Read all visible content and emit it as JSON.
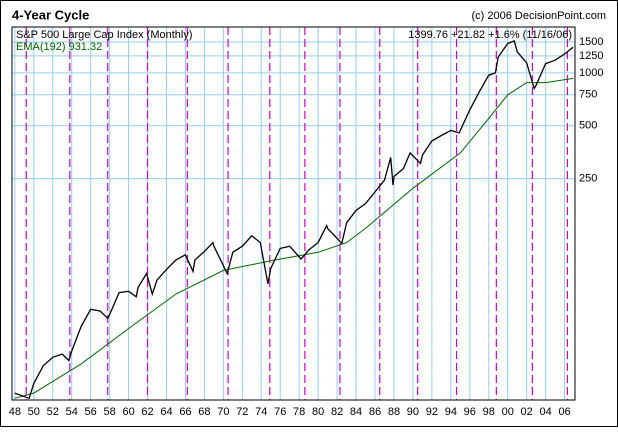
{
  "chart_data": {
    "type": "line",
    "title": "4-Year Cycle",
    "copyright": "(c) 2006 DecisionPoint.com",
    "subtitle": "S&P 500 Large Cap Index (Monthly)",
    "last_quote": "1399.76 +21.82 +1.6% (11/16/06)",
    "ema_label": "EMA(192) 931.32",
    "log_scale": true,
    "grid": true,
    "xlim": [
      1947.7,
      2007.1
    ],
    "ylim": [
      13.7,
      1825
    ],
    "yticks": [
      250,
      500,
      750,
      1000,
      1250,
      1500
    ],
    "xticks": [
      {
        "value": 1948,
        "label": "48"
      },
      {
        "value": 1950,
        "label": "50"
      },
      {
        "value": 1952,
        "label": "52"
      },
      {
        "value": 1954,
        "label": "54"
      },
      {
        "value": 1956,
        "label": "56"
      },
      {
        "value": 1958,
        "label": "58"
      },
      {
        "value": 1960,
        "label": "60"
      },
      {
        "value": 1962,
        "label": "62"
      },
      {
        "value": 1964,
        "label": "64"
      },
      {
        "value": 1966,
        "label": "66"
      },
      {
        "value": 1968,
        "label": "68"
      },
      {
        "value": 1970,
        "label": "70"
      },
      {
        "value": 1972,
        "label": "72"
      },
      {
        "value": 1974,
        "label": "74"
      },
      {
        "value": 1976,
        "label": "76"
      },
      {
        "value": 1978,
        "label": "78"
      },
      {
        "value": 1980,
        "label": "80"
      },
      {
        "value": 1982,
        "label": "82"
      },
      {
        "value": 1984,
        "label": "84"
      },
      {
        "value": 1986,
        "label": "86"
      },
      {
        "value": 1988,
        "label": "88"
      },
      {
        "value": 1990,
        "label": "90"
      },
      {
        "value": 1992,
        "label": "92"
      },
      {
        "value": 1994,
        "label": "94"
      },
      {
        "value": 1996,
        "label": "96"
      },
      {
        "value": 1998,
        "label": "98"
      },
      {
        "value": 2000,
        "label": "00"
      },
      {
        "value": 2002,
        "label": "02"
      },
      {
        "value": 2004,
        "label": "04"
      },
      {
        "value": 2006,
        "label": "06"
      }
    ],
    "cycle_lines": [
      1949.2,
      1953.8,
      1957.8,
      1962.0,
      1966.2,
      1970.5,
      1974.9,
      1978.6,
      1982.3,
      1986.5,
      1990.5,
      1994.6,
      1998.8,
      2002.6,
      2006.3
    ],
    "cycle_color": "#cc00cc",
    "series": [
      {
        "color": "#000000",
        "x": [
          1948.0,
          1949.5,
          1950,
          1951,
          1952,
          1953,
          1953.7,
          1954,
          1955,
          1956,
          1957,
          1957.8,
          1958,
          1959,
          1960,
          1960.8,
          1961,
          1961.9,
          1962.5,
          1963,
          1964,
          1965,
          1966,
          1966.8,
          1967,
          1968,
          1968.9,
          1969,
          1970.4,
          1971,
          1972,
          1973,
          1973.9,
          1974.7,
          1975,
          1976,
          1977,
          1978.2,
          1979,
          1980,
          1980.9,
          1981,
          1982.5,
          1983,
          1984,
          1985,
          1986,
          1987,
          1987.65,
          1987.9,
          1988,
          1989,
          1989.7,
          1990.8,
          1991,
          1992,
          1993,
          1994,
          1994.9,
          1995,
          1996,
          1997,
          1998,
          1998.7,
          1999,
          2000,
          2000.7,
          2001,
          2002,
          2002.8,
          2003,
          2004,
          2005,
          2006,
          2006.9
        ],
        "values": [
          15,
          14,
          17,
          21.5,
          24,
          25,
          23,
          26,
          36,
          45,
          44,
          40,
          42,
          56,
          57,
          53,
          60,
          72,
          55,
          66,
          76,
          86,
          92,
          74,
          86,
          96,
          108,
          103,
          72,
          95,
          103,
          118,
          108,
          63,
          77,
          100,
          103,
          87,
          98,
          108,
          135,
          130,
          107,
          140,
          165,
          180,
          210,
          245,
          330,
          230,
          257,
          285,
          350,
          305,
          340,
          410,
          440,
          470,
          455,
          470,
          615,
          780,
          970,
          1000,
          1230,
          1470,
          1520,
          1320,
          1140,
          815,
          850,
          1130,
          1180,
          1280,
          1400
        ]
      },
      {
        "color": "#006600",
        "x": [
          1948,
          1950,
          1955,
          1960,
          1965,
          1970,
          1975,
          1980,
          1983,
          1985,
          1990,
          1995,
          1998,
          2000,
          2002,
          2004,
          2006.9
        ],
        "values": [
          14,
          15,
          22,
          35,
          55,
          75,
          85,
          95,
          108,
          130,
          220,
          350,
          550,
          750,
          880,
          880,
          930
        ]
      }
    ]
  }
}
